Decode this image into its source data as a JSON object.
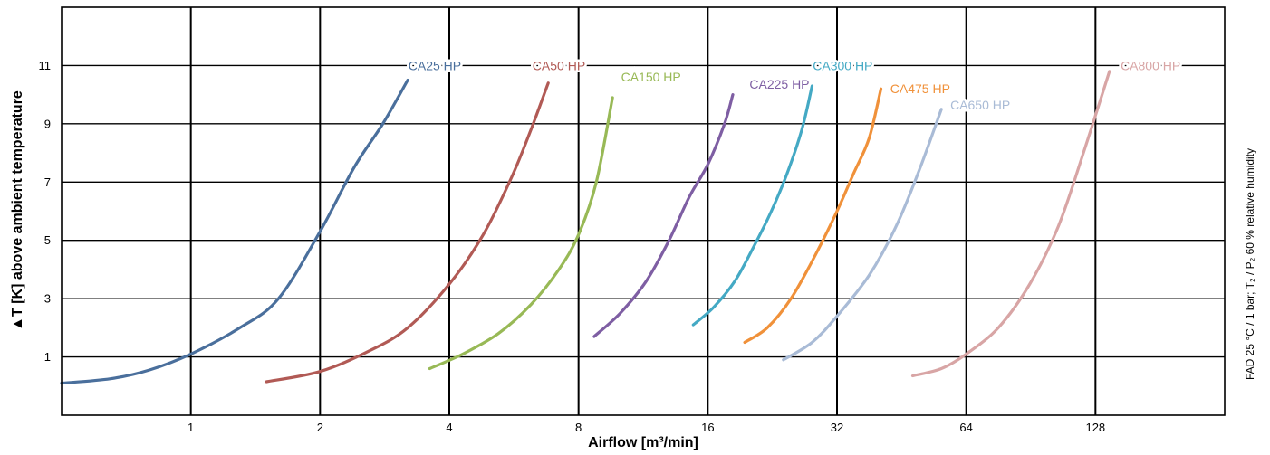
{
  "chart_data": {
    "type": "line",
    "xscale": "log2",
    "xlabel": "Airflow [m³/min]",
    "ylabel": "▲T [K] above ambient temperature",
    "side_note": "FAD 25 °C / 1 bar; T₂ / P₂ 60 % relative humidity",
    "xlim": [
      0.5,
      256
    ],
    "ylim": [
      -1,
      13
    ],
    "x_ticks": [
      1,
      2,
      4,
      8,
      16,
      32,
      64,
      128
    ],
    "x_tick_labels": [
      "1",
      "2",
      "4",
      "8",
      "16",
      "32",
      "64",
      "128"
    ],
    "y_ticks": [
      1,
      3,
      5,
      7,
      9,
      11
    ],
    "y_tick_labels": [
      "1",
      "3",
      "5",
      "7",
      "9",
      "11"
    ],
    "y_gridlines": [
      1,
      3,
      5,
      7,
      9,
      11
    ],
    "x_gridlines": [
      1,
      2,
      4,
      8,
      16,
      32,
      64,
      128
    ],
    "grid": true,
    "series": [
      {
        "name": "CA25 HP",
        "color": "#4a6f9c",
        "x": [
          0.5,
          0.65,
          0.8,
          1.0,
          1.3,
          1.6,
          2.0,
          2.4,
          2.8,
          3.2
        ],
        "y": [
          0.1,
          0.25,
          0.55,
          1.1,
          2.0,
          3.0,
          5.3,
          7.5,
          9.0,
          10.5
        ]
      },
      {
        "name": "CA50 HP",
        "color": "#b15a55",
        "x": [
          1.5,
          2.0,
          2.6,
          3.2,
          4.0,
          4.8,
          5.6,
          6.2,
          6.8
        ],
        "y": [
          0.15,
          0.5,
          1.2,
          2.0,
          3.5,
          5.2,
          7.2,
          8.8,
          10.4
        ]
      },
      {
        "name": "CA150 HP",
        "color": "#98b956",
        "x": [
          3.6,
          4.3,
          5.2,
          6.2,
          7.2,
          8.0,
          8.8,
          9.6
        ],
        "y": [
          0.6,
          1.1,
          1.8,
          2.8,
          4.0,
          5.2,
          7.0,
          9.9
        ]
      },
      {
        "name": "CA225 HP",
        "color": "#7e5ea3",
        "x": [
          8.7,
          10.0,
          11.5,
          13.0,
          14.5,
          16.0,
          17.5,
          18.3
        ],
        "y": [
          1.7,
          2.5,
          3.6,
          5.0,
          6.5,
          7.6,
          9.0,
          10.0
        ]
      },
      {
        "name": "CA300 HP",
        "color": "#44a9c4",
        "x": [
          14.8,
          16.5,
          18.5,
          20.5,
          22.5,
          24.5,
          26.5,
          28.0
        ],
        "y": [
          2.1,
          2.7,
          3.6,
          4.8,
          6.0,
          7.3,
          8.8,
          10.3
        ]
      },
      {
        "name": "CA475 HP",
        "color": "#f0913a",
        "x": [
          19.5,
          22.0,
          25.0,
          28.5,
          32.0,
          35.0,
          38.0,
          40.5
        ],
        "y": [
          1.5,
          2.0,
          3.0,
          4.5,
          6.0,
          7.3,
          8.5,
          10.2
        ]
      },
      {
        "name": "CA650 HP",
        "color": "#a9bbd6",
        "x": [
          24.0,
          28.0,
          32.0,
          38.0,
          44.0,
          50.0,
          56.0
        ],
        "y": [
          0.9,
          1.5,
          2.4,
          3.8,
          5.5,
          7.5,
          9.5
        ]
      },
      {
        "name": "CA800 HP",
        "color": "#d8a5a5",
        "x": [
          48.0,
          56.0,
          64.0,
          76.0,
          90.0,
          105.0,
          120.0,
          138.0
        ],
        "y": [
          0.35,
          0.6,
          1.1,
          2.0,
          3.5,
          5.5,
          8.0,
          10.8
        ]
      }
    ],
    "series_label_positions": [
      {
        "name": "CA25 HP",
        "x": 3.7,
        "y": 10.85
      },
      {
        "name": "CA50 HP",
        "x": 7.2,
        "y": 10.85
      },
      {
        "name": "CA150 HP",
        "x": 11.8,
        "y": 10.45
      },
      {
        "name": "CA225 HP",
        "x": 23.5,
        "y": 10.2
      },
      {
        "name": "CA300 HP",
        "x": 33.0,
        "y": 10.85
      },
      {
        "name": "CA475 HP",
        "x": 50.0,
        "y": 10.05
      },
      {
        "name": "CA650 HP",
        "x": 69.0,
        "y": 9.5
      },
      {
        "name": "CA800 HP",
        "x": 172.0,
        "y": 10.85
      }
    ]
  }
}
